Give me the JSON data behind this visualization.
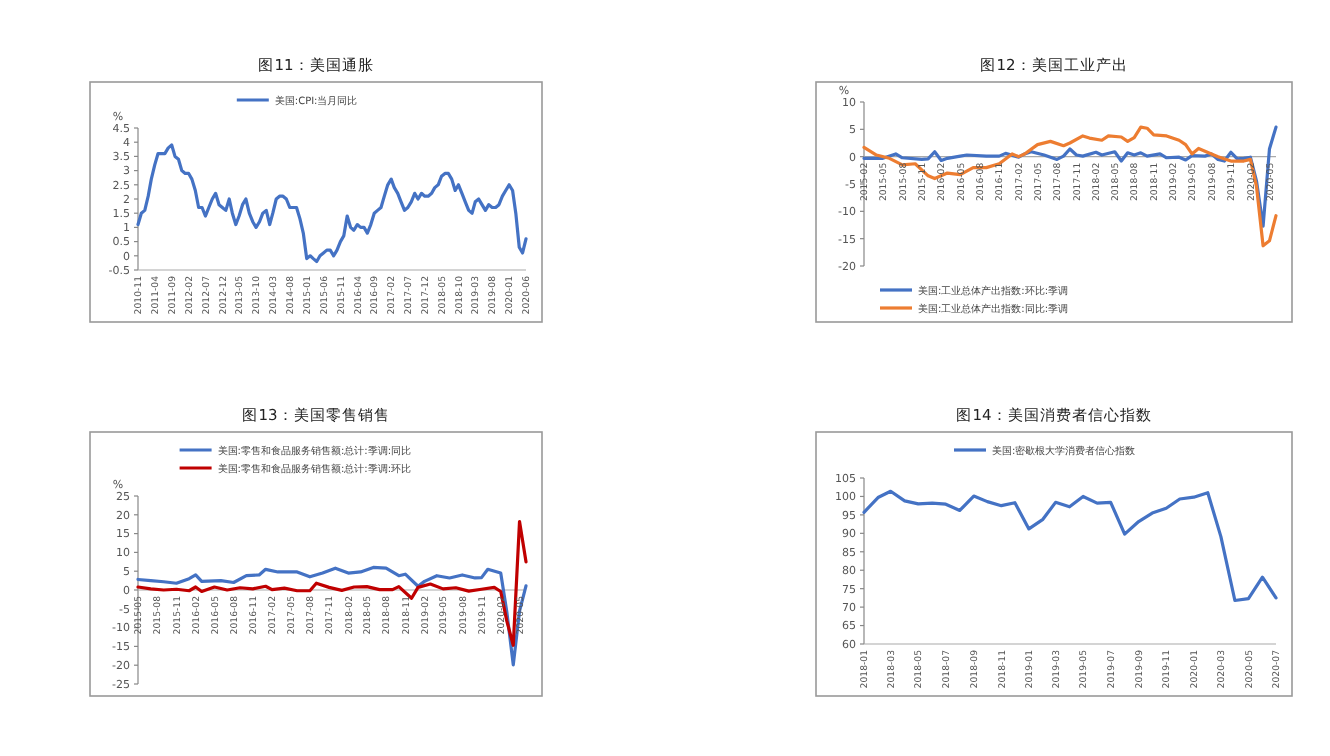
{
  "chart_data": [
    {
      "type": "line",
      "title": "图11：美国通胀",
      "ylabel": "%",
      "legend": "top",
      "grid": false,
      "xlim": [
        "2010-11",
        "2020-06"
      ],
      "xticks": [
        "2010-11",
        "2011-04",
        "2011-09",
        "2012-02",
        "2012-07",
        "2012-12",
        "2013-05",
        "2013-10",
        "2014-03",
        "2014-08",
        "2015-01",
        "2015-06",
        "2015-11",
        "2016-04",
        "2016-09",
        "2017-02",
        "2017-07",
        "2017-12",
        "2018-05",
        "2018-10",
        "2019-03",
        "2019-08",
        "2020-01",
        "2020-06"
      ],
      "ylim": [
        -0.5,
        4.5
      ],
      "yticks": [
        -0.5,
        0,
        0.5,
        1,
        1.5,
        2,
        2.5,
        3,
        3.5,
        4,
        4.5
      ],
      "x": [
        "2010-11",
        "2010-12",
        "2011-01",
        "2011-02",
        "2011-03",
        "2011-04",
        "2011-05",
        "2011-06",
        "2011-07",
        "2011-08",
        "2011-09",
        "2011-10",
        "2011-11",
        "2011-12",
        "2012-01",
        "2012-02",
        "2012-03",
        "2012-04",
        "2012-05",
        "2012-06",
        "2012-07",
        "2012-08",
        "2012-09",
        "2012-10",
        "2012-11",
        "2012-12",
        "2013-01",
        "2013-02",
        "2013-03",
        "2013-04",
        "2013-05",
        "2013-06",
        "2013-07",
        "2013-08",
        "2013-09",
        "2013-10",
        "2013-11",
        "2013-12",
        "2014-01",
        "2014-02",
        "2014-03",
        "2014-04",
        "2014-05",
        "2014-06",
        "2014-07",
        "2014-08",
        "2014-09",
        "2014-10",
        "2014-11",
        "2014-12",
        "2015-01",
        "2015-02",
        "2015-03",
        "2015-04",
        "2015-05",
        "2015-06",
        "2015-07",
        "2015-08",
        "2015-09",
        "2015-10",
        "2015-11",
        "2015-12",
        "2016-01",
        "2016-02",
        "2016-03",
        "2016-04",
        "2016-05",
        "2016-06",
        "2016-07",
        "2016-08",
        "2016-09",
        "2016-10",
        "2016-11",
        "2016-12",
        "2017-01",
        "2017-02",
        "2017-03",
        "2017-04",
        "2017-05",
        "2017-06",
        "2017-07",
        "2017-08",
        "2017-09",
        "2017-10",
        "2017-11",
        "2017-12",
        "2018-01",
        "2018-02",
        "2018-03",
        "2018-04",
        "2018-05",
        "2018-06",
        "2018-07",
        "2018-08",
        "2018-09",
        "2018-10",
        "2018-11",
        "2018-12",
        "2019-01",
        "2019-02",
        "2019-03",
        "2019-04",
        "2019-05",
        "2019-06",
        "2019-07",
        "2019-08",
        "2019-09",
        "2019-10",
        "2019-11",
        "2019-12",
        "2020-01",
        "2020-02",
        "2020-03",
        "2020-04",
        "2020-05",
        "2020-06"
      ],
      "series": [
        {
          "name": "美国:CPI:当月同比",
          "color": "#4472c4",
          "values": [
            1.1,
            1.5,
            1.6,
            2.1,
            2.7,
            3.2,
            3.6,
            3.6,
            3.6,
            3.8,
            3.9,
            3.5,
            3.4,
            3.0,
            2.9,
            2.9,
            2.7,
            2.3,
            1.7,
            1.7,
            1.4,
            1.7,
            2.0,
            2.2,
            1.8,
            1.7,
            1.6,
            2.0,
            1.5,
            1.1,
            1.4,
            1.8,
            2.0,
            1.5,
            1.2,
            1.0,
            1.2,
            1.5,
            1.6,
            1.1,
            1.5,
            2.0,
            2.1,
            2.1,
            2.0,
            1.7,
            1.7,
            1.7,
            1.3,
            0.8,
            -0.1,
            0.0,
            -0.1,
            -0.2,
            0.0,
            0.1,
            0.2,
            0.2,
            0.0,
            0.2,
            0.5,
            0.7,
            1.4,
            1.0,
            0.9,
            1.1,
            1.0,
            1.0,
            0.8,
            1.1,
            1.5,
            1.6,
            1.7,
            2.1,
            2.5,
            2.7,
            2.4,
            2.2,
            1.9,
            1.6,
            1.7,
            1.9,
            2.2,
            2.0,
            2.2,
            2.1,
            2.1,
            2.2,
            2.4,
            2.5,
            2.8,
            2.9,
            2.9,
            2.7,
            2.3,
            2.5,
            2.2,
            1.9,
            1.6,
            1.5,
            1.9,
            2.0,
            1.8,
            1.6,
            1.8,
            1.7,
            1.7,
            1.8,
            2.1,
            2.3,
            2.5,
            2.3,
            1.5,
            0.3,
            0.1,
            0.6
          ]
        }
      ]
    },
    {
      "type": "line",
      "title": "图12：美国工业产出",
      "ylabel": "%",
      "legend": "bottom",
      "grid": false,
      "xlim": [
        "2015-02",
        "2020-06"
      ],
      "xticks": [
        "2015-02",
        "2015-05",
        "2015-08",
        "2015-11",
        "2016-02",
        "2016-05",
        "2016-08",
        "2016-11",
        "2017-02",
        "2017-05",
        "2017-08",
        "2017-11",
        "2018-02",
        "2018-05",
        "2018-08",
        "2018-11",
        "2019-02",
        "2019-05",
        "2019-08",
        "2019-11",
        "2020-02",
        "2020-05"
      ],
      "ylim": [
        -20,
        10
      ],
      "yticks": [
        -20,
        -15,
        -10,
        -5,
        0,
        5,
        10
      ],
      "series": [
        {
          "name": "美国:工业总体产出指数:环比:季调",
          "color": "#4472c4",
          "x": [
            "2015-02",
            "2015-05",
            "2015-07",
            "2015-08",
            "2015-11",
            "2015-12",
            "2016-01",
            "2016-02",
            "2016-03",
            "2016-05",
            "2016-06",
            "2016-09",
            "2016-11",
            "2016-12",
            "2017-02",
            "2017-03",
            "2017-04",
            "2017-06",
            "2017-08",
            "2017-09",
            "2017-10",
            "2017-11",
            "2017-12",
            "2018-02",
            "2018-03",
            "2018-05",
            "2018-06",
            "2018-07",
            "2018-08",
            "2018-09",
            "2018-10",
            "2018-12",
            "2019-01",
            "2019-03",
            "2019-04",
            "2019-05",
            "2019-07",
            "2019-08",
            "2019-09",
            "2019-10",
            "2019-11",
            "2019-12",
            "2020-01",
            "2020-02",
            "2020-03",
            "2020-04",
            "2020-05",
            "2020-06"
          ],
          "values": [
            -0.3,
            -0.3,
            0.5,
            -0.2,
            -0.5,
            -0.4,
            0.9,
            -0.7,
            -0.3,
            0.1,
            0.3,
            0.1,
            0.1,
            0.6,
            -0.1,
            0.5,
            0.9,
            0.3,
            -0.5,
            0.1,
            1.4,
            0.3,
            0.1,
            0.8,
            0.3,
            0.9,
            -0.8,
            0.7,
            0.3,
            0.7,
            0.1,
            0.5,
            -0.2,
            -0.1,
            -0.6,
            0.2,
            0.1,
            0.5,
            -0.5,
            -0.8,
            0.8,
            -0.4,
            -0.3,
            -0.1,
            -4.5,
            -12.7,
            1.4,
            5.4
          ]
        },
        {
          "name": "美国:工业总体产出指数:同比:季调",
          "color": "#ed7d31",
          "x": [
            "2015-02",
            "2015-04",
            "2015-06",
            "2015-08",
            "2015-10",
            "2015-12",
            "2016-01",
            "2016-03",
            "2016-05",
            "2016-07",
            "2016-09",
            "2016-11",
            "2017-01",
            "2017-02",
            "2017-03",
            "2017-05",
            "2017-07",
            "2017-09",
            "2017-10",
            "2017-12",
            "2018-01",
            "2018-03",
            "2018-04",
            "2018-06",
            "2018-07",
            "2018-08",
            "2018-09",
            "2018-10",
            "2018-11",
            "2019-01",
            "2019-03",
            "2019-04",
            "2019-05",
            "2019-06",
            "2019-08",
            "2019-09",
            "2019-11",
            "2020-01",
            "2020-02",
            "2020-03",
            "2020-04",
            "2020-05",
            "2020-06"
          ],
          "values": [
            1.7,
            0.3,
            -0.3,
            -1.5,
            -1.3,
            -3.5,
            -4.0,
            -3.0,
            -3.3,
            -2.0,
            -2.0,
            -1.3,
            0.5,
            0,
            0.5,
            2.2,
            2.8,
            2.0,
            2.5,
            3.8,
            3.4,
            3.0,
            3.8,
            3.6,
            2.8,
            3.5,
            5.4,
            5.2,
            4.0,
            3.8,
            3.0,
            2.2,
            0.5,
            1.5,
            0.5,
            0,
            -0.8,
            -0.8,
            -0.5,
            -5.5,
            -16.3,
            -15.4,
            -10.8
          ]
        }
      ]
    },
    {
      "type": "line",
      "title": "图13：美国零售销售",
      "ylabel": "%",
      "legend": "top",
      "grid": false,
      "xlim": [
        "2015-05",
        "2020-06"
      ],
      "xticks": [
        "2015-05",
        "2015-08",
        "2015-11",
        "2016-02",
        "2016-05",
        "2016-08",
        "2016-11",
        "2017-02",
        "2017-05",
        "2017-08",
        "2017-11",
        "2018-02",
        "2018-05",
        "2018-08",
        "2018-11",
        "2019-02",
        "2019-05",
        "2019-08",
        "2019-11",
        "2020-02",
        "2020-05"
      ],
      "ylim": [
        -25,
        25
      ],
      "yticks": [
        -25,
        -20,
        -15,
        -10,
        -5,
        0,
        5,
        10,
        15,
        20,
        25
      ],
      "series": [
        {
          "name": "美国:零售和食品服务销售额:总计:季调:同比",
          "color": "#4472c4",
          "x": [
            "2015-05",
            "2015-07",
            "2015-09",
            "2015-11",
            "2016-01",
            "2016-02",
            "2016-03",
            "2016-06",
            "2016-08",
            "2016-10",
            "2016-12",
            "2017-01",
            "2017-03",
            "2017-06",
            "2017-08",
            "2017-10",
            "2017-12",
            "2018-02",
            "2018-04",
            "2018-06",
            "2018-08",
            "2018-10",
            "2018-11",
            "2019-01",
            "2019-02",
            "2019-04",
            "2019-06",
            "2019-08",
            "2019-10",
            "2019-11",
            "2019-12",
            "2020-02",
            "2020-03",
            "2020-04",
            "2020-05",
            "2020-06"
          ],
          "values": [
            2.8,
            2.5,
            2.2,
            1.8,
            3.0,
            4.0,
            2.3,
            2.5,
            2.0,
            3.8,
            4.0,
            5.5,
            4.8,
            4.8,
            3.5,
            4.5,
            5.8,
            4.5,
            4.8,
            6.0,
            5.8,
            3.8,
            4.2,
            1.0,
            2.3,
            3.8,
            3.2,
            4.0,
            3.2,
            3.3,
            5.5,
            4.5,
            -5.8,
            -19.9,
            -5.6,
            1.1
          ]
        },
        {
          "name": "美国:零售和食品服务销售额:总计:季调:环比",
          "color": "#c00000",
          "x": [
            "2015-05",
            "2015-07",
            "2015-09",
            "2015-11",
            "2016-01",
            "2016-02",
            "2016-03",
            "2016-05",
            "2016-07",
            "2016-09",
            "2016-11",
            "2017-01",
            "2017-02",
            "2017-04",
            "2017-06",
            "2017-08",
            "2017-09",
            "2017-11",
            "2018-01",
            "2018-03",
            "2018-05",
            "2018-07",
            "2018-09",
            "2018-10",
            "2018-12",
            "2019-01",
            "2019-03",
            "2019-05",
            "2019-07",
            "2019-09",
            "2019-11",
            "2020-01",
            "2020-02",
            "2020-03",
            "2020-04",
            "2020-05",
            "2020-06"
          ],
          "values": [
            0.8,
            0.3,
            0,
            0.2,
            -0.2,
            0.8,
            -0.4,
            0.8,
            0,
            0.6,
            0.3,
            1.0,
            0.1,
            0.5,
            -0.2,
            -0.2,
            1.8,
            0.7,
            -0.1,
            0.8,
            0.9,
            0.1,
            0.1,
            0.9,
            -2.2,
            0.7,
            1.6,
            0.3,
            0.6,
            -0.3,
            0.2,
            0.7,
            -0.4,
            -8.2,
            -14.7,
            18.2,
            7.5
          ]
        }
      ]
    },
    {
      "type": "line",
      "title": "图14：美国消费者信心指数",
      "legend": "top",
      "grid": false,
      "xlim": [
        "2018-01",
        "2020-07"
      ],
      "xticks": [
        "2018-01",
        "2018-03",
        "2018-05",
        "2018-07",
        "2018-09",
        "2018-11",
        "2019-01",
        "2019-03",
        "2019-05",
        "2019-07",
        "2019-09",
        "2019-11",
        "2020-01",
        "2020-03",
        "2020-05",
        "2020-07"
      ],
      "ylim": [
        60,
        105
      ],
      "yticks": [
        60,
        65,
        70,
        75,
        80,
        85,
        90,
        95,
        100,
        105
      ],
      "x": [
        "2018-01",
        "2018-02",
        "2018-03",
        "2018-04",
        "2018-05",
        "2018-06",
        "2018-07",
        "2018-08",
        "2018-09",
        "2018-10",
        "2018-11",
        "2018-12",
        "2019-01",
        "2019-02",
        "2019-03",
        "2019-04",
        "2019-05",
        "2019-06",
        "2019-07",
        "2019-08",
        "2019-09",
        "2019-10",
        "2019-11",
        "2019-12",
        "2020-01",
        "2020-02",
        "2020-03",
        "2020-04",
        "2020-05",
        "2020-06",
        "2020-07"
      ],
      "series": [
        {
          "name": "美国:密歇根大学消费者信心指数",
          "color": "#4472c4",
          "values": [
            95.7,
            99.7,
            101.4,
            98.8,
            98.0,
            98.2,
            97.9,
            96.2,
            100.1,
            98.6,
            97.5,
            98.3,
            91.2,
            93.8,
            98.4,
            97.2,
            100.0,
            98.2,
            98.4,
            89.8,
            93.2,
            95.5,
            96.8,
            99.3,
            99.8,
            101.0,
            89.1,
            71.8,
            72.3,
            78.1,
            72.5
          ]
        }
      ]
    }
  ]
}
